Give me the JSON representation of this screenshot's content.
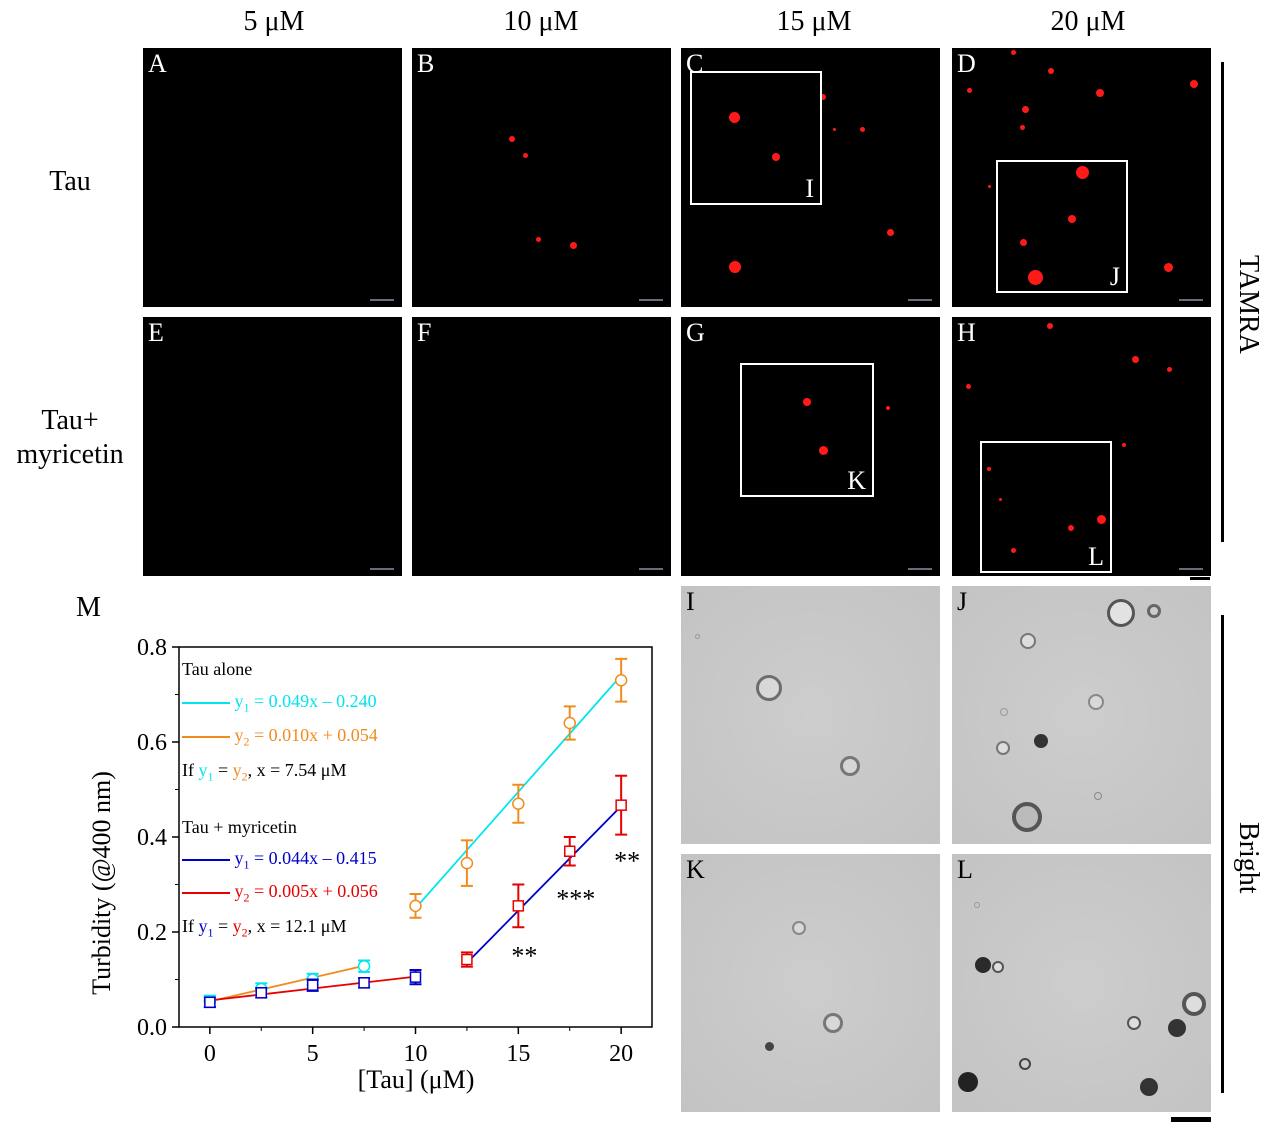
{
  "columns": [
    "5 μM",
    "10 μM",
    "15 μM",
    "20 μM"
  ],
  "rows": [
    "Tau",
    "Tau+\nmyricetin"
  ],
  "fluorescence_panels": [
    "A",
    "B",
    "C",
    "D",
    "E",
    "F",
    "G",
    "H"
  ],
  "zoom_boxes": [
    "I",
    "J",
    "K",
    "L"
  ],
  "brightfield_panels": [
    "I",
    "J",
    "K",
    "L"
  ],
  "side_labels": {
    "fluorescence": "TAMRA",
    "brightfield": "Bright"
  },
  "chart_panel_label": "M",
  "legend": {
    "group1_title": "Tau alone",
    "group1_line1": "= 0.049x – 0.240",
    "group1_line2": "= 0.010x + 0.054",
    "group1_if": ", x = 7.54 μM",
    "group2_title": "Tau + myricetin",
    "group2_line1": "= 0.044x – 0.415",
    "group2_line2": "= 0.005x + 0.056",
    "group2_if": ", x = 12.1 μM",
    "y": "y",
    "sub1": "1",
    "sub2": "2",
    "if_word": "If ",
    "equals": " = "
  },
  "colors": {
    "cyan": "#00e5ee",
    "orange": "#f08c1e",
    "blue": "#0000c8",
    "red": "#e60000",
    "droplet": "#ff1a1a"
  },
  "chart_data": {
    "type": "scatter",
    "xlabel": "[Tau] (μM)",
    "ylabel": "Turbidity (@400 nm)",
    "xlim": [
      -1.5,
      21.5
    ],
    "ylim": [
      0.0,
      0.8
    ],
    "xticks": [
      0,
      5,
      10,
      15,
      20
    ],
    "yticks": [
      0.0,
      0.2,
      0.4,
      0.6,
      0.8
    ],
    "ytick_labels": [
      "0.0",
      "0.2",
      "0.4",
      "0.6",
      "0.8"
    ],
    "series": [
      {
        "name": "Tau alone",
        "marker": "circle",
        "x": [
          0,
          2.5,
          5,
          7.5,
          10,
          12.5,
          15,
          17.5,
          20
        ],
        "y": [
          0.054,
          0.08,
          0.1,
          0.128,
          0.255,
          0.345,
          0.47,
          0.64,
          0.73
        ],
        "err": [
          0.012,
          0.012,
          0.012,
          0.012,
          0.025,
          0.048,
          0.04,
          0.035,
          0.045
        ],
        "colors": [
          "cyan",
          "cyan",
          "cyan",
          "cyan",
          "orange",
          "orange",
          "orange",
          "orange",
          "orange"
        ]
      },
      {
        "name": "Tau + myricetin",
        "marker": "square",
        "x": [
          0,
          2.5,
          5,
          7.5,
          10,
          12.5,
          15,
          17.5,
          20
        ],
        "y": [
          0.052,
          0.072,
          0.088,
          0.093,
          0.105,
          0.142,
          0.255,
          0.37,
          0.467
        ],
        "err": [
          0.01,
          0.01,
          0.012,
          0.01,
          0.015,
          0.015,
          0.045,
          0.03,
          0.062
        ],
        "colors": [
          "blue",
          "blue",
          "blue",
          "blue",
          "blue",
          "red",
          "red",
          "red",
          "red"
        ]
      }
    ],
    "fit_lines": [
      {
        "color": "cyan",
        "slope": 0.049,
        "intercept": -0.24,
        "x_range": [
          10,
          20
        ]
      },
      {
        "color": "orange",
        "slope": 0.01,
        "intercept": 0.054,
        "x_range": [
          0,
          7.5
        ]
      },
      {
        "color": "blue",
        "slope": 0.044,
        "intercept": -0.415,
        "x_range": [
          12.5,
          20
        ]
      },
      {
        "color": "red",
        "slope": 0.005,
        "intercept": 0.056,
        "x_range": [
          0,
          10
        ]
      }
    ],
    "annotations": [
      {
        "x": 15,
        "y": 0.17,
        "text": "**"
      },
      {
        "x": 17.5,
        "y": 0.29,
        "text": "***"
      },
      {
        "x": 20,
        "y": 0.37,
        "text": "**"
      }
    ]
  }
}
